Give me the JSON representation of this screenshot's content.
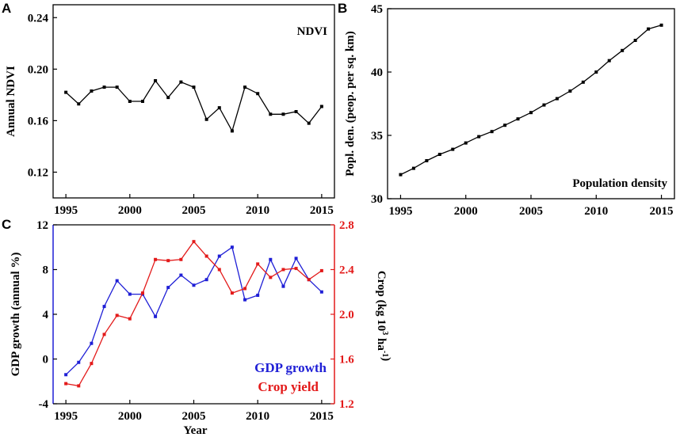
{
  "colors": {
    "black": "#000000",
    "gdp": "#1f1fd6",
    "crop": "#e31a1a"
  },
  "chart_data": [
    {
      "id": "A",
      "panel_label": "A",
      "type": "line",
      "title": "NDVI",
      "xlabel": "",
      "ylabel": "Annual NDVI",
      "x": [
        1995,
        1996,
        1997,
        1998,
        1999,
        2000,
        2001,
        2002,
        2003,
        2004,
        2005,
        2006,
        2007,
        2008,
        2009,
        2010,
        2011,
        2012,
        2013,
        2014,
        2015
      ],
      "values": [
        0.182,
        0.173,
        0.183,
        0.186,
        0.186,
        0.175,
        0.175,
        0.191,
        0.178,
        0.19,
        0.186,
        0.161,
        0.17,
        0.152,
        0.186,
        0.181,
        0.165,
        0.165,
        0.167,
        0.158,
        0.171
      ],
      "xlim": [
        1994,
        2016
      ],
      "ylim": [
        0.1,
        0.25
      ],
      "xticks": [
        1995,
        2000,
        2005,
        2010,
        2015
      ],
      "xtick_labels": [
        "1995",
        "2000",
        "2005",
        "2010",
        "2015"
      ],
      "yticks": [
        0.12,
        0.16,
        0.2,
        0.24
      ],
      "ytick_labels": [
        "0.12",
        "0.16",
        "0.20",
        "0.24"
      ]
    },
    {
      "id": "B",
      "panel_label": "B",
      "type": "line",
      "title": "Population density",
      "xlabel": "",
      "ylabel": "Popl. den. (peop. per sq. km)",
      "x": [
        1995,
        1996,
        1997,
        1998,
        1999,
        2000,
        2001,
        2002,
        2003,
        2004,
        2005,
        2006,
        2007,
        2008,
        2009,
        2010,
        2011,
        2012,
        2013,
        2014,
        2015
      ],
      "values": [
        31.9,
        32.4,
        33.0,
        33.5,
        33.9,
        34.4,
        34.9,
        35.3,
        35.8,
        36.3,
        36.8,
        37.4,
        37.9,
        38.5,
        39.2,
        40.0,
        40.9,
        41.7,
        42.5,
        43.4,
        43.7
      ],
      "xlim": [
        1994,
        2016
      ],
      "ylim": [
        30,
        45
      ],
      "xticks": [
        1995,
        2000,
        2005,
        2010,
        2015
      ],
      "xtick_labels": [
        "1995",
        "2000",
        "2005",
        "2010",
        "2015"
      ],
      "yticks": [
        30,
        35,
        40,
        45
      ],
      "ytick_labels": [
        "30",
        "35",
        "40",
        "45"
      ]
    },
    {
      "id": "C",
      "panel_label": "C",
      "type": "line",
      "xlabel": "Year",
      "ylabel": "GDP growth (annual %)",
      "ylabel_right": "Crop (kg 10",
      "ylabel_right_sup1": "3",
      "ylabel_right_mid": " ha",
      "ylabel_right_sup2": "-1",
      "ylabel_right_end": ")",
      "x": [
        1995,
        1996,
        1997,
        1998,
        1999,
        2000,
        2001,
        2002,
        2003,
        2004,
        2005,
        2006,
        2007,
        2008,
        2009,
        2010,
        2011,
        2012,
        2013,
        2014,
        2015
      ],
      "xlim": [
        1994,
        2016
      ],
      "xticks": [
        1995,
        2000,
        2005,
        2010,
        2015
      ],
      "xtick_labels": [
        "1995",
        "2000",
        "2005",
        "2010",
        "2015"
      ],
      "ylim": [
        -4,
        12
      ],
      "yticks": [
        -4,
        0,
        4,
        8,
        12
      ],
      "ytick_labels": [
        "-4",
        "0",
        "4",
        "8",
        "12"
      ],
      "ylim_right": [
        1.2,
        2.8
      ],
      "yticks_right": [
        1.2,
        1.6,
        2.0,
        2.4,
        2.8
      ],
      "ytick_labels_right": [
        "1.2",
        "1.6",
        "2.0",
        "2.4",
        "2.8"
      ],
      "series": [
        {
          "name": "GDP growth",
          "axis": "left",
          "values": [
            -1.4,
            -0.3,
            1.4,
            4.7,
            7.0,
            5.8,
            5.8,
            3.8,
            6.4,
            7.5,
            6.6,
            7.1,
            9.2,
            10.0,
            5.3,
            5.7,
            8.9,
            6.5,
            9.0,
            7.1,
            6.0
          ]
        },
        {
          "name": "Crop yield",
          "axis": "right",
          "values": [
            1.38,
            1.36,
            1.56,
            1.82,
            1.99,
            1.96,
            2.19,
            2.49,
            2.48,
            2.49,
            2.65,
            2.52,
            2.4,
            2.19,
            2.23,
            2.45,
            2.33,
            2.4,
            2.41,
            2.31,
            2.39
          ]
        }
      ],
      "legend": [
        "GDP growth",
        "Crop yield"
      ]
    }
  ]
}
